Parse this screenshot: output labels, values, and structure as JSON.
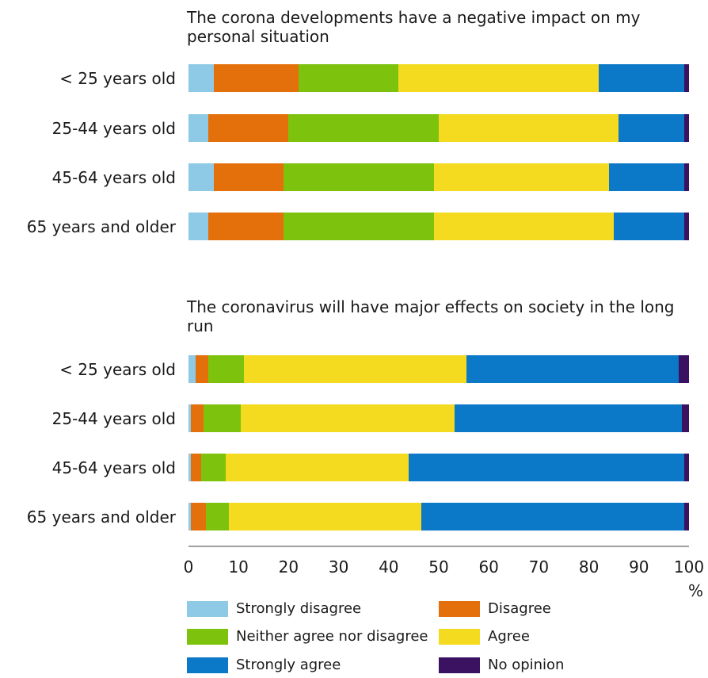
{
  "chart_data": [
    {
      "type": "bar",
      "orientation": "horizontal",
      "stacked": true,
      "title": "The corona developments have a negative impact on my personal situation",
      "categories": [
        "< 25 years old",
        "25-44 years old",
        "45-64 years old",
        "65 years and older"
      ],
      "series": [
        {
          "name": "Strongly disagree",
          "color": "#8ecae6",
          "values": [
            5,
            4,
            5,
            4
          ]
        },
        {
          "name": "Disagree",
          "color": "#e3700b",
          "values": [
            17,
            16,
            14,
            15
          ]
        },
        {
          "name": "Neither agree nor disagree",
          "color": "#7dc20d",
          "values": [
            20,
            30,
            30,
            30
          ]
        },
        {
          "name": "Agree",
          "color": "#f4db20",
          "values": [
            40,
            36,
            35,
            36
          ]
        },
        {
          "name": "Strongly agree",
          "color": "#0b78c8",
          "values": [
            17,
            13,
            15,
            14
          ]
        },
        {
          "name": "No opinion",
          "color": "#3a1261",
          "values": [
            1,
            1,
            1,
            1
          ]
        }
      ]
    },
    {
      "type": "bar",
      "orientation": "horizontal",
      "stacked": true,
      "title": "The coronavirus will have major effects on society in the long run",
      "categories": [
        "< 25 years old",
        "25-44 years old",
        "45-64 years old",
        "65 years and older"
      ],
      "series": [
        {
          "name": "Strongly disagree",
          "color": "#8ecae6",
          "values": [
            1.5,
            0.5,
            0.5,
            0.5
          ]
        },
        {
          "name": "Disagree",
          "color": "#e3700b",
          "values": [
            2.5,
            2.5,
            2,
            3
          ]
        },
        {
          "name": "Neither agree nor disagree",
          "color": "#7dc20d",
          "values": [
            7,
            7.5,
            5,
            4.5
          ]
        },
        {
          "name": "Agree",
          "color": "#f4db20",
          "values": [
            44.5,
            43,
            36.5,
            38.5
          ]
        },
        {
          "name": "Strongly agree",
          "color": "#0b78c8",
          "values": [
            42.5,
            45.5,
            55,
            52.5
          ]
        },
        {
          "name": "No opinion",
          "color": "#3a1261",
          "values": [
            2,
            1.5,
            1,
            1
          ]
        }
      ]
    }
  ],
  "axis": {
    "ticks": [
      "0",
      "10",
      "20",
      "30",
      "40",
      "50",
      "60",
      "70",
      "80",
      "90",
      "100"
    ],
    "unit": "%",
    "xlim": [
      0,
      100
    ]
  },
  "legend": {
    "placement": "bottom",
    "items": [
      {
        "label": "Strongly disagree",
        "color": "#8ecae6"
      },
      {
        "label": "Disagree",
        "color": "#e3700b"
      },
      {
        "label": "Neither agree nor disagree",
        "color": "#7dc20d"
      },
      {
        "label": "Agree",
        "color": "#f4db20"
      },
      {
        "label": "Strongly agree",
        "color": "#0b78c8"
      },
      {
        "label": "No opinion",
        "color": "#3a1261"
      }
    ]
  }
}
